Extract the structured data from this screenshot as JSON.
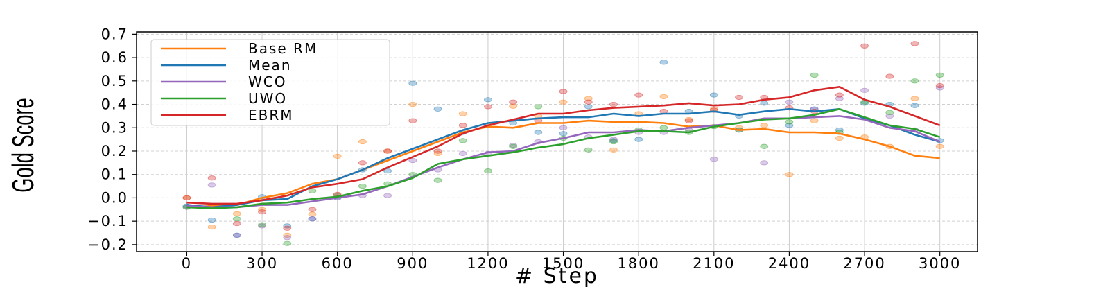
{
  "chart_data": {
    "type": "line",
    "xlabel": "# Step",
    "ylabel": "Gold Score",
    "xlim": [
      -200,
      3150
    ],
    "ylim": [
      -0.23,
      0.71
    ],
    "xticks": [
      0,
      300,
      600,
      900,
      1200,
      1500,
      1800,
      2100,
      2400,
      2700,
      3000
    ],
    "yticks": [
      -0.2,
      -0.1,
      0.0,
      0.1,
      0.2,
      0.3,
      0.4,
      0.5,
      0.6,
      0.7
    ],
    "ytick_labels": [
      "−0.2",
      "−0.1",
      "0.0",
      "0.1",
      "0.2",
      "0.3",
      "0.4",
      "0.5",
      "0.6",
      "0.7"
    ],
    "grid": "vertical solid and horizontal dashed",
    "legend_position": "top-left",
    "x": [
      0,
      100,
      200,
      300,
      400,
      500,
      600,
      700,
      800,
      900,
      1000,
      1100,
      1200,
      1300,
      1400,
      1500,
      1600,
      1700,
      1800,
      1900,
      2000,
      2100,
      2200,
      2300,
      2400,
      2500,
      2600,
      2700,
      2800,
      2900,
      3000
    ],
    "series": [
      {
        "name": "Base RM",
        "color": "#ff7f0e",
        "values": [
          -0.04,
          -0.035,
          -0.03,
          0.0,
          0.02,
          0.06,
          0.08,
          0.12,
          0.16,
          0.2,
          0.24,
          0.28,
          0.305,
          0.3,
          0.32,
          0.32,
          0.33,
          0.325,
          0.325,
          0.32,
          0.305,
          0.31,
          0.29,
          0.295,
          0.28,
          0.28,
          0.275,
          0.25,
          0.22,
          0.18,
          0.17
        ],
        "points": [
          0.0,
          -0.125,
          -0.068,
          -0.05,
          -0.16,
          -0.07,
          0.178,
          0.24,
          0.2,
          0.4,
          0.19,
          0.36,
          0.31,
          0.392,
          0.35,
          0.41,
          0.425,
          0.205,
          0.36,
          0.433,
          0.335,
          0.38,
          0.3,
          0.31,
          0.1,
          0.33,
          0.255,
          0.26,
          0.22,
          0.425,
          0.22
        ]
      },
      {
        "name": "Mean",
        "color": "#1f77b4",
        "values": [
          -0.03,
          -0.04,
          -0.03,
          -0.01,
          -0.005,
          0.05,
          0.08,
          0.12,
          0.17,
          0.21,
          0.25,
          0.29,
          0.32,
          0.33,
          0.34,
          0.345,
          0.345,
          0.36,
          0.35,
          0.36,
          0.36,
          0.37,
          0.355,
          0.37,
          0.38,
          0.37,
          0.38,
          0.34,
          0.31,
          0.27,
          0.24
        ],
        "points": [
          -0.035,
          -0.095,
          -0.16,
          0.005,
          -0.12,
          -0.09,
          0.0,
          0.12,
          0.115,
          0.49,
          0.38,
          0.28,
          0.42,
          0.32,
          0.28,
          0.275,
          0.39,
          0.245,
          0.25,
          0.58,
          0.37,
          0.44,
          0.35,
          0.405,
          0.31,
          0.38,
          0.29,
          0.405,
          0.4,
          0.395,
          0.245
        ]
      },
      {
        "name": "WCO",
        "color": "#9467bd",
        "values": [
          -0.035,
          -0.04,
          -0.04,
          -0.03,
          -0.03,
          -0.015,
          0.0,
          0.015,
          0.05,
          0.09,
          0.13,
          0.165,
          0.195,
          0.2,
          0.235,
          0.255,
          0.28,
          0.28,
          0.29,
          0.285,
          0.3,
          0.31,
          0.32,
          0.34,
          0.34,
          0.345,
          0.35,
          0.335,
          0.3,
          0.285,
          0.24
        ],
        "points": [
          -0.04,
          0.055,
          -0.16,
          -0.12,
          -0.17,
          -0.09,
          0.0,
          0.01,
          0.01,
          0.16,
          0.12,
          0.19,
          0.19,
          0.225,
          0.24,
          0.3,
          0.26,
          0.25,
          0.28,
          0.28,
          0.29,
          0.165,
          0.29,
          0.15,
          0.41,
          0.38,
          0.425,
          0.46,
          0.35,
          0.29,
          0.47
        ]
      },
      {
        "name": "UWO",
        "color": "#2ca02c",
        "values": [
          -0.04,
          -0.045,
          -0.04,
          -0.025,
          -0.02,
          -0.005,
          0.005,
          0.03,
          0.05,
          0.085,
          0.145,
          0.165,
          0.18,
          0.195,
          0.215,
          0.23,
          0.255,
          0.27,
          0.285,
          0.285,
          0.28,
          0.305,
          0.32,
          0.335,
          0.34,
          0.355,
          0.38,
          0.345,
          0.31,
          0.295,
          0.26
        ],
        "points": [
          -0.04,
          -0.035,
          -0.09,
          -0.115,
          -0.195,
          0.03,
          0.01,
          0.05,
          0.06,
          0.1,
          0.075,
          0.245,
          0.115,
          0.22,
          0.39,
          0.255,
          0.205,
          0.24,
          0.29,
          0.3,
          0.28,
          0.305,
          0.29,
          0.22,
          0.325,
          0.525,
          0.28,
          0.41,
          0.365,
          0.5,
          0.525
        ]
      },
      {
        "name": "EBRM",
        "color": "#d62728",
        "values": [
          -0.02,
          -0.025,
          -0.025,
          -0.01,
          0.01,
          0.045,
          0.06,
          0.08,
          0.13,
          0.175,
          0.22,
          0.275,
          0.31,
          0.335,
          0.36,
          0.36,
          0.375,
          0.385,
          0.39,
          0.395,
          0.405,
          0.395,
          0.4,
          0.42,
          0.43,
          0.46,
          0.475,
          0.42,
          0.39,
          0.35,
          0.31
        ],
        "points": [
          0.0,
          0.085,
          -0.11,
          -0.06,
          -0.13,
          -0.05,
          0.015,
          0.15,
          0.2,
          0.33,
          0.2,
          0.31,
          0.39,
          0.41,
          0.33,
          0.455,
          0.41,
          0.4,
          0.44,
          0.37,
          0.33,
          0.375,
          0.43,
          0.43,
          0.385,
          0.37,
          0.44,
          0.65,
          0.52,
          0.66,
          0.48
        ]
      }
    ]
  }
}
